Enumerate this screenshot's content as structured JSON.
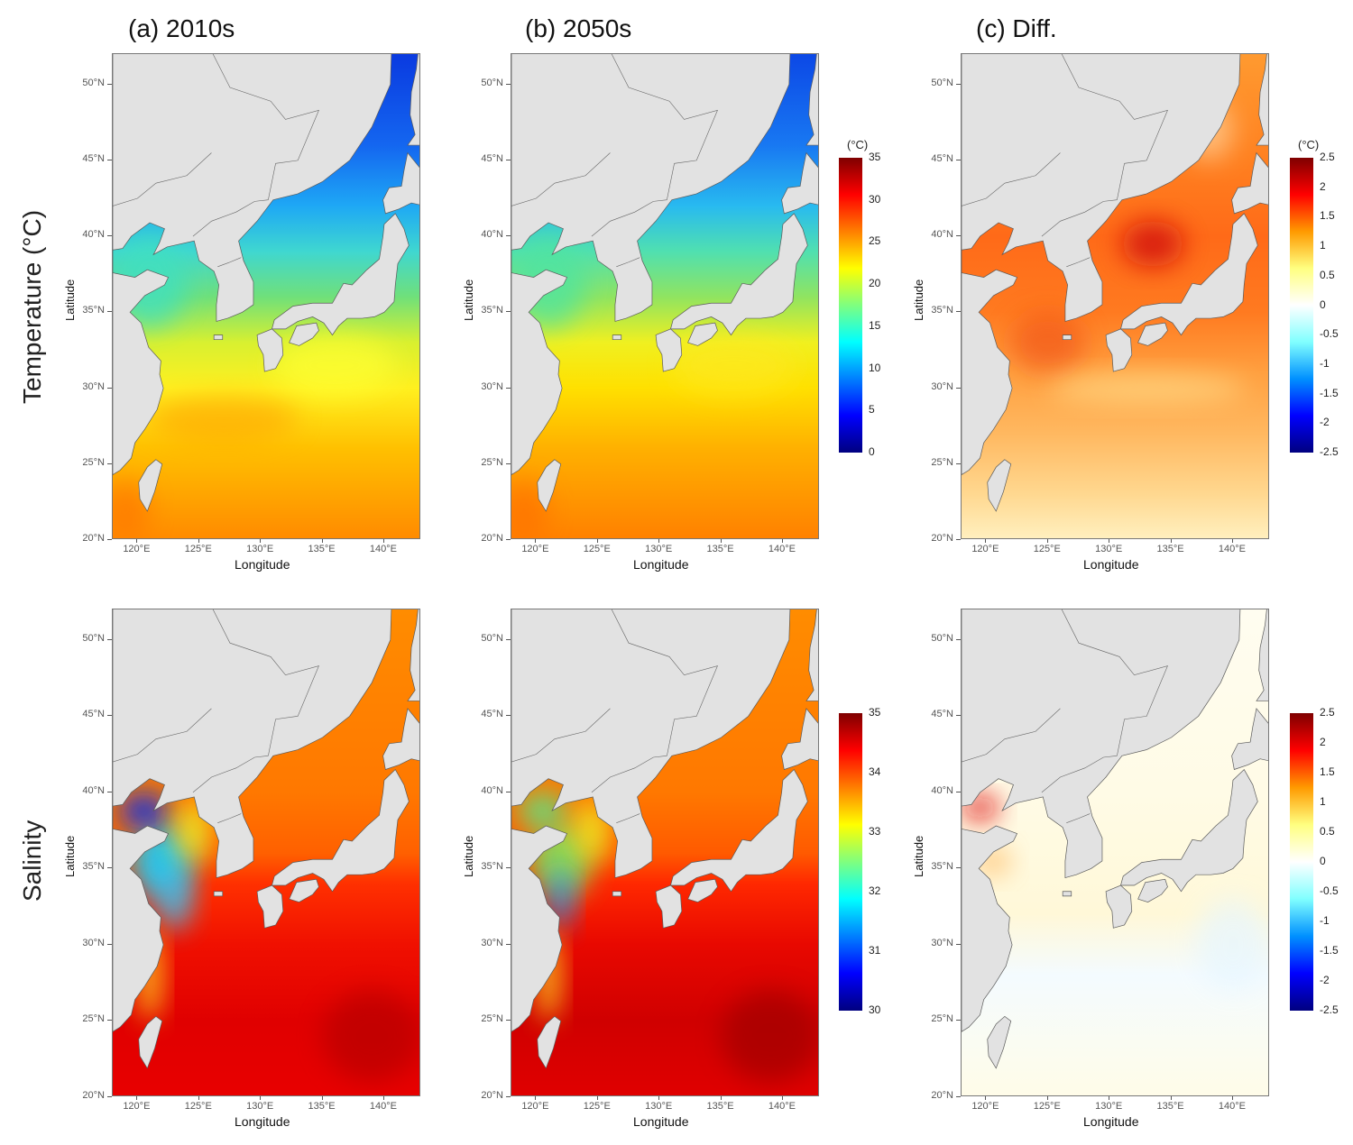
{
  "columns": [
    {
      "title": "(a) 2010s"
    },
    {
      "title": "(b) 2050s"
    },
    {
      "title": "(c) Diff."
    }
  ],
  "rows": [
    {
      "label": "Temperature (°C)"
    },
    {
      "label": "Salinity"
    }
  ],
  "axes": {
    "xlabel": "Longitude",
    "ylabel": "Latitude",
    "lon_ticks": [
      "120°E",
      "125°E",
      "130°E",
      "135°E",
      "140°E"
    ],
    "lat_ticks": [
      "20°N",
      "25°N",
      "30°N",
      "35°N",
      "40°N",
      "45°N",
      "50°N"
    ],
    "lon_range": [
      118,
      143
    ],
    "lat_range": [
      20,
      52
    ]
  },
  "chart_data": [
    {
      "type": "heatmap",
      "title": "(a) 2010s Temperature",
      "variable": "Temperature",
      "unit": "°C",
      "colorbar": "temp"
    },
    {
      "type": "heatmap",
      "title": "(b) 2050s Temperature",
      "variable": "Temperature",
      "unit": "°C",
      "colorbar": "temp"
    },
    {
      "type": "heatmap",
      "title": "(c) Diff. Temperature",
      "variable": "Temperature difference",
      "unit": "°C",
      "colorbar": "diff_temp"
    },
    {
      "type": "heatmap",
      "title": "(a) 2010s Salinity",
      "variable": "Salinity",
      "colorbar": "sal"
    },
    {
      "type": "heatmap",
      "title": "(b) 2050s Salinity",
      "variable": "Salinity",
      "colorbar": "sal"
    },
    {
      "type": "heatmap",
      "title": "(c) Diff. Salinity",
      "variable": "Salinity difference",
      "colorbar": "diff_sal"
    }
  ],
  "colorbars": {
    "temp": {
      "unit": "(°C)",
      "range": [
        0,
        35
      ],
      "ticks": [
        "35",
        "30",
        "25",
        "20",
        "15",
        "10",
        "5",
        "0"
      ]
    },
    "diff_temp": {
      "unit": "(°C)",
      "range": [
        -2.5,
        2.5
      ],
      "ticks": [
        "2.5",
        "2",
        "1.5",
        "1",
        "0.5",
        "0",
        "-0.5",
        "-1",
        "-1.5",
        "-2",
        "-2.5"
      ]
    },
    "sal": {
      "range": [
        30,
        35
      ],
      "ticks": [
        "35",
        "34",
        "33",
        "32",
        "31",
        "30"
      ]
    },
    "diff_sal": {
      "range": [
        -2.5,
        2.5
      ],
      "ticks": [
        "2.5",
        "2",
        "1.5",
        "1",
        "0.5",
        "0",
        "-0.5",
        "-1",
        "-1.5",
        "-2",
        "-2.5"
      ]
    }
  },
  "colors": {
    "land": "#e2e2e2",
    "coast": "#5a5a5a"
  }
}
